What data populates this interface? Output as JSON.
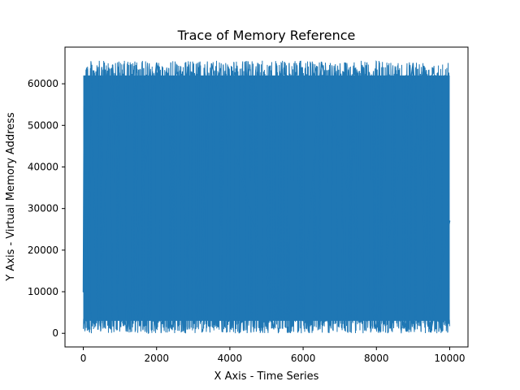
{
  "chart_data": {
    "type": "line",
    "title": "Trace of Memory Reference",
    "xlabel": "X Axis - Time Series",
    "ylabel": "Y Axis - Virtual Memory Address",
    "xlim": [
      -500,
      10500
    ],
    "ylim": [
      -3277,
      68813
    ],
    "xticks": [
      0,
      2000,
      4000,
      6000,
      8000,
      10000
    ],
    "yticks": [
      0,
      10000,
      20000,
      30000,
      40000,
      50000,
      60000
    ],
    "grid": false,
    "legend": "none",
    "series": [
      {
        "color": "#1f77b4",
        "n_points": 10000,
        "x_range": [
          0,
          10000
        ],
        "y_range": [
          0,
          65536
        ],
        "sampled_points": {
          "x": [
            0,
            20,
            60,
            100,
            200,
            400,
            800,
            1200,
            2000,
            3200,
            3450,
            3500,
            5300,
            6000,
            6500,
            8000,
            9000,
            9500,
            10000
          ],
          "y": [
            10000,
            54000,
            61000,
            3000,
            63000,
            1000,
            64500,
            500,
            65000,
            8500,
            56500,
            64800,
            4500,
            6000,
            65200,
            1000,
            64900,
            1000,
            27000
          ]
        }
      }
    ]
  }
}
